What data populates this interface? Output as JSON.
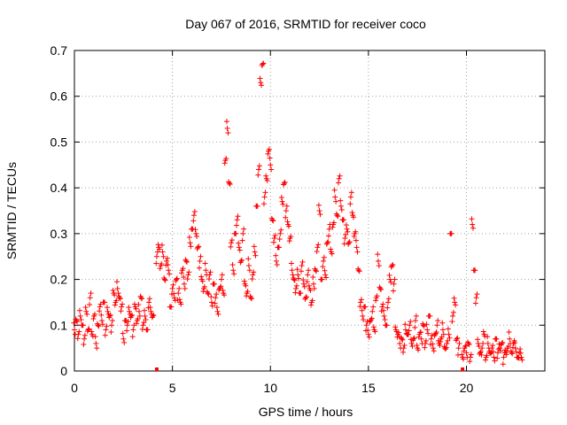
{
  "chart_data": {
    "type": "scatter",
    "title": "Day 067 of 2016, SRMTID for receiver coco",
    "xlabel": "GPS time / hours",
    "ylabel": "SRMTID / TECUs",
    "xlim": [
      0,
      24
    ],
    "ylim": [
      0,
      0.7
    ],
    "xticks": [
      0,
      5,
      10,
      15,
      20
    ],
    "yticks": [
      0,
      0.1,
      0.2,
      0.3,
      0.4,
      0.5,
      0.6,
      0.7
    ],
    "xtick_labels": [
      "0",
      "5",
      "10",
      "15",
      "20"
    ],
    "ytick_labels": [
      "0",
      "0.1",
      "0.2",
      "0.3",
      "0.4",
      "0.5",
      "0.6",
      "0.7"
    ],
    "grid": true,
    "marker": "plus",
    "color": "#ff0000",
    "series": [
      {
        "name": "SRMTID",
        "x": [
          0.0,
          0.1,
          0.2,
          0.3,
          0.4,
          0.5,
          0.6,
          0.7,
          0.8,
          0.9,
          1.0,
          1.1,
          1.2,
          1.3,
          1.4,
          1.5,
          1.6,
          1.7,
          1.8,
          1.9,
          2.0,
          2.1,
          2.2,
          2.3,
          2.4,
          2.5,
          2.6,
          2.7,
          2.8,
          2.9,
          3.0,
          3.1,
          3.2,
          3.3,
          3.4,
          3.5,
          3.6,
          3.7,
          3.8,
          3.9,
          4.0,
          4.2,
          4.3,
          4.4,
          4.5,
          4.6,
          4.7,
          4.8,
          4.9,
          5.0,
          5.1,
          5.2,
          5.3,
          5.4,
          5.5,
          5.6,
          5.7,
          5.8,
          5.9,
          6.0,
          6.1,
          6.2,
          6.3,
          6.4,
          6.5,
          6.6,
          6.7,
          6.8,
          6.9,
          7.0,
          7.1,
          7.2,
          7.3,
          7.4,
          7.5,
          7.6,
          7.7,
          7.8,
          7.9,
          8.0,
          8.1,
          8.2,
          8.3,
          8.4,
          8.5,
          8.6,
          8.7,
          8.8,
          8.9,
          9.0,
          9.1,
          9.2,
          9.3,
          9.4,
          9.5,
          9.6,
          9.7,
          9.8,
          9.9,
          10.0,
          10.1,
          10.2,
          10.3,
          10.4,
          10.5,
          10.6,
          10.7,
          10.8,
          10.9,
          11.0,
          11.1,
          11.2,
          11.3,
          11.4,
          11.5,
          11.6,
          11.7,
          11.8,
          11.9,
          12.0,
          12.1,
          12.2,
          12.3,
          12.4,
          12.5,
          12.6,
          12.7,
          12.8,
          12.9,
          13.0,
          13.1,
          13.2,
          13.3,
          13.4,
          13.5,
          13.6,
          13.7,
          13.8,
          13.9,
          14.0,
          14.1,
          14.2,
          14.3,
          14.4,
          14.5,
          14.6,
          14.7,
          14.8,
          14.9,
          15.0,
          15.1,
          15.2,
          15.3,
          15.4,
          15.5,
          15.6,
          15.7,
          15.8,
          15.9,
          16.0,
          16.1,
          16.2,
          16.3,
          16.4,
          16.5,
          16.6,
          16.7,
          16.8,
          16.9,
          17.0,
          17.1,
          17.2,
          17.3,
          17.4,
          17.5,
          17.6,
          17.7,
          17.8,
          17.9,
          18.0,
          18.1,
          18.2,
          18.3,
          18.4,
          18.5,
          18.6,
          18.7,
          18.8,
          18.9,
          19.0,
          19.1,
          19.2,
          19.3,
          19.4,
          19.5,
          19.6,
          19.8,
          19.9,
          20.0,
          20.1,
          20.2,
          20.3,
          20.4,
          20.5,
          20.6,
          20.7,
          20.8,
          20.9,
          21.0,
          21.1,
          21.2,
          21.3,
          21.4,
          21.5,
          21.6,
          21.7,
          21.8,
          21.9,
          22.0,
          22.1,
          22.2,
          22.3,
          22.4,
          22.5,
          22.6,
          22.7,
          22.8
        ],
        "y": [
          0.09,
          0.11,
          0.08,
          0.12,
          0.1,
          0.07,
          0.13,
          0.09,
          0.16,
          0.08,
          0.12,
          0.06,
          0.1,
          0.14,
          0.11,
          0.15,
          0.09,
          0.13,
          0.12,
          0.1,
          0.17,
          0.15,
          0.18,
          0.16,
          0.14,
          0.07,
          0.11,
          0.1,
          0.13,
          0.12,
          0.09,
          0.14,
          0.11,
          0.13,
          0.16,
          0.1,
          0.12,
          0.09,
          0.15,
          0.13,
          0.12,
          0.25,
          0.27,
          0.23,
          0.26,
          0.2,
          0.24,
          0.22,
          0.14,
          0.18,
          0.16,
          0.2,
          0.17,
          0.15,
          0.22,
          0.19,
          0.24,
          0.21,
          0.28,
          0.31,
          0.34,
          0.3,
          0.27,
          0.24,
          0.2,
          0.18,
          0.22,
          0.17,
          0.21,
          0.15,
          0.19,
          0.16,
          0.13,
          0.18,
          0.2,
          0.17,
          0.46,
          0.53,
          0.41,
          0.28,
          0.22,
          0.3,
          0.33,
          0.27,
          0.24,
          0.3,
          0.19,
          0.17,
          0.23,
          0.16,
          0.21,
          0.26,
          0.36,
          0.44,
          0.63,
          0.67,
          0.38,
          0.42,
          0.48,
          0.45,
          0.33,
          0.29,
          0.24,
          0.27,
          0.3,
          0.37,
          0.41,
          0.35,
          0.32,
          0.29,
          0.22,
          0.2,
          0.18,
          0.21,
          0.17,
          0.23,
          0.19,
          0.16,
          0.21,
          0.18,
          0.15,
          0.19,
          0.22,
          0.27,
          0.35,
          0.2,
          0.24,
          0.21,
          0.28,
          0.31,
          0.26,
          0.32,
          0.38,
          0.34,
          0.42,
          0.36,
          0.33,
          0.29,
          0.31,
          0.28,
          0.38,
          0.34,
          0.3,
          0.27,
          0.22,
          0.15,
          0.12,
          0.14,
          0.1,
          0.08,
          0.11,
          0.13,
          0.09,
          0.16,
          0.24,
          0.18,
          0.14,
          0.12,
          0.1,
          0.15,
          0.2,
          0.23,
          0.19,
          0.09,
          0.08,
          0.06,
          0.07,
          0.05,
          0.09,
          0.08,
          0.1,
          0.06,
          0.07,
          0.11,
          0.05,
          0.08,
          0.07,
          0.1,
          0.06,
          0.09,
          0.12,
          0.07,
          0.05,
          0.08,
          0.1,
          0.06,
          0.07,
          0.09,
          0.05,
          0.06,
          0.08,
          0.3,
          0.12,
          0.15,
          0.07,
          0.05,
          0.03,
          0.05,
          0.04,
          0.06,
          0.03,
          0.32,
          0.22,
          0.16,
          0.06,
          0.04,
          0.05,
          0.08,
          0.03,
          0.06,
          0.04,
          0.05,
          0.03,
          0.07,
          0.04,
          0.05,
          0.06,
          0.03,
          0.04,
          0.05,
          0.07,
          0.04,
          0.06,
          0.05,
          0.03,
          0.04,
          0.03
        ]
      }
    ],
    "baseline_markers": {
      "x": [
        4.2,
        19.8
      ],
      "y": [
        0,
        0
      ]
    }
  }
}
